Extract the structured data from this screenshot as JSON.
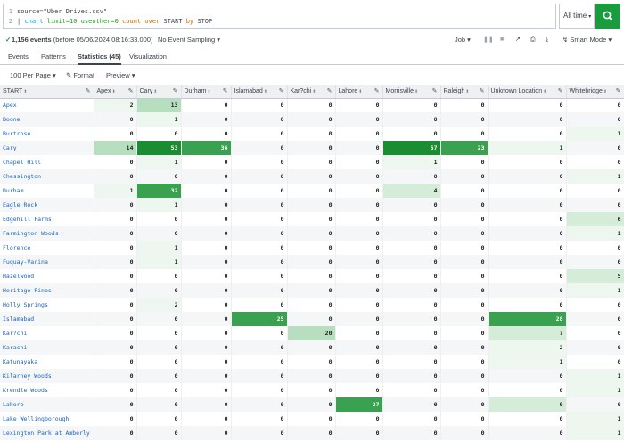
{
  "search": {
    "line1_num": "1",
    "line2_num": "2",
    "line1": "source=\"Uber Drives.csv\"",
    "pipe": "|",
    "cmd": "chart",
    "arg1": "limit=10",
    "arg2": "useother=0",
    "fn": "count",
    "over": "over",
    "field1": "START",
    "by": "by",
    "field2": "STOP",
    "time_label": "All time"
  },
  "status": {
    "count_bold": "1,156 events",
    "count_rest": "(before 05/06/2024 08:16:33.000)",
    "sampling": "No Event Sampling",
    "job": "Job",
    "mode": "Smart Mode"
  },
  "tabs": [
    "Events",
    "Patterns",
    "Statistics (45)",
    "Visualization"
  ],
  "toolbar": {
    "per_page": "100 Per Page",
    "format": "Format",
    "preview": "Preview"
  },
  "colors": {
    "accent": "#1a9c3e",
    "link": "#1a63b8"
  },
  "table": {
    "columns": [
      "START",
      "Apex",
      "Cary",
      "Durham",
      "Islamabad",
      "Kar?chi",
      "Lahore",
      "Morrisville",
      "Raleigh",
      "Unknown Location",
      "Whitebridge"
    ],
    "rows": [
      [
        "Apex",
        "2",
        "13",
        "0",
        "0",
        "0",
        "0",
        "0",
        "0",
        "0",
        "0"
      ],
      [
        "Boone",
        "0",
        "1",
        "0",
        "0",
        "0",
        "0",
        "0",
        "0",
        "0",
        "0"
      ],
      [
        "Burtrose",
        "0",
        "0",
        "0",
        "0",
        "0",
        "0",
        "0",
        "0",
        "0",
        "1"
      ],
      [
        "Cary",
        "14",
        "53",
        "36",
        "0",
        "0",
        "0",
        "67",
        "23",
        "1",
        "0"
      ],
      [
        "Chapel Hill",
        "0",
        "1",
        "0",
        "0",
        "0",
        "0",
        "1",
        "0",
        "0",
        "0"
      ],
      [
        "Chessington",
        "0",
        "0",
        "0",
        "0",
        "0",
        "0",
        "0",
        "0",
        "0",
        "1"
      ],
      [
        "Durham",
        "1",
        "32",
        "0",
        "0",
        "0",
        "0",
        "4",
        "0",
        "0",
        "0"
      ],
      [
        "Eagle Rock",
        "0",
        "1",
        "0",
        "0",
        "0",
        "0",
        "0",
        "0",
        "0",
        "0"
      ],
      [
        "Edgehill Farms",
        "0",
        "0",
        "0",
        "0",
        "0",
        "0",
        "0",
        "0",
        "0",
        "6"
      ],
      [
        "Farmington Woods",
        "0",
        "0",
        "0",
        "0",
        "0",
        "0",
        "0",
        "0",
        "0",
        "1"
      ],
      [
        "Florence",
        "0",
        "1",
        "0",
        "0",
        "0",
        "0",
        "0",
        "0",
        "0",
        "0"
      ],
      [
        "Fuquay-Varina",
        "0",
        "1",
        "0",
        "0",
        "0",
        "0",
        "0",
        "0",
        "0",
        "0"
      ],
      [
        "Hazelwood",
        "0",
        "0",
        "0",
        "0",
        "0",
        "0",
        "0",
        "0",
        "0",
        "5"
      ],
      [
        "Heritage Pines",
        "0",
        "0",
        "0",
        "0",
        "0",
        "0",
        "0",
        "0",
        "0",
        "1"
      ],
      [
        "Holly Springs",
        "0",
        "2",
        "0",
        "0",
        "0",
        "0",
        "0",
        "0",
        "0",
        "0"
      ],
      [
        "Islamabad",
        "0",
        "0",
        "0",
        "25",
        "0",
        "0",
        "0",
        "0",
        "28",
        "0"
      ],
      [
        "Kar?chi",
        "0",
        "0",
        "0",
        "0",
        "20",
        "0",
        "0",
        "0",
        "7",
        "0"
      ],
      [
        "Karachi",
        "0",
        "0",
        "0",
        "0",
        "0",
        "0",
        "0",
        "0",
        "2",
        "0"
      ],
      [
        "Katunayaka",
        "0",
        "0",
        "0",
        "0",
        "0",
        "0",
        "0",
        "0",
        "1",
        "0"
      ],
      [
        "Kilarney Woods",
        "0",
        "0",
        "0",
        "0",
        "0",
        "0",
        "0",
        "0",
        "0",
        "1"
      ],
      [
        "Krendle Woods",
        "0",
        "0",
        "0",
        "0",
        "0",
        "0",
        "0",
        "0",
        "0",
        "1"
      ],
      [
        "Lahore",
        "0",
        "0",
        "0",
        "0",
        "0",
        "27",
        "0",
        "0",
        "9",
        "0"
      ],
      [
        "Lake Wellingborough",
        "0",
        "0",
        "0",
        "0",
        "0",
        "0",
        "0",
        "0",
        "0",
        "1"
      ],
      [
        "Lexington Park at Amberly",
        "0",
        "0",
        "0",
        "0",
        "0",
        "0",
        "0",
        "0",
        "0",
        "1"
      ]
    ]
  }
}
